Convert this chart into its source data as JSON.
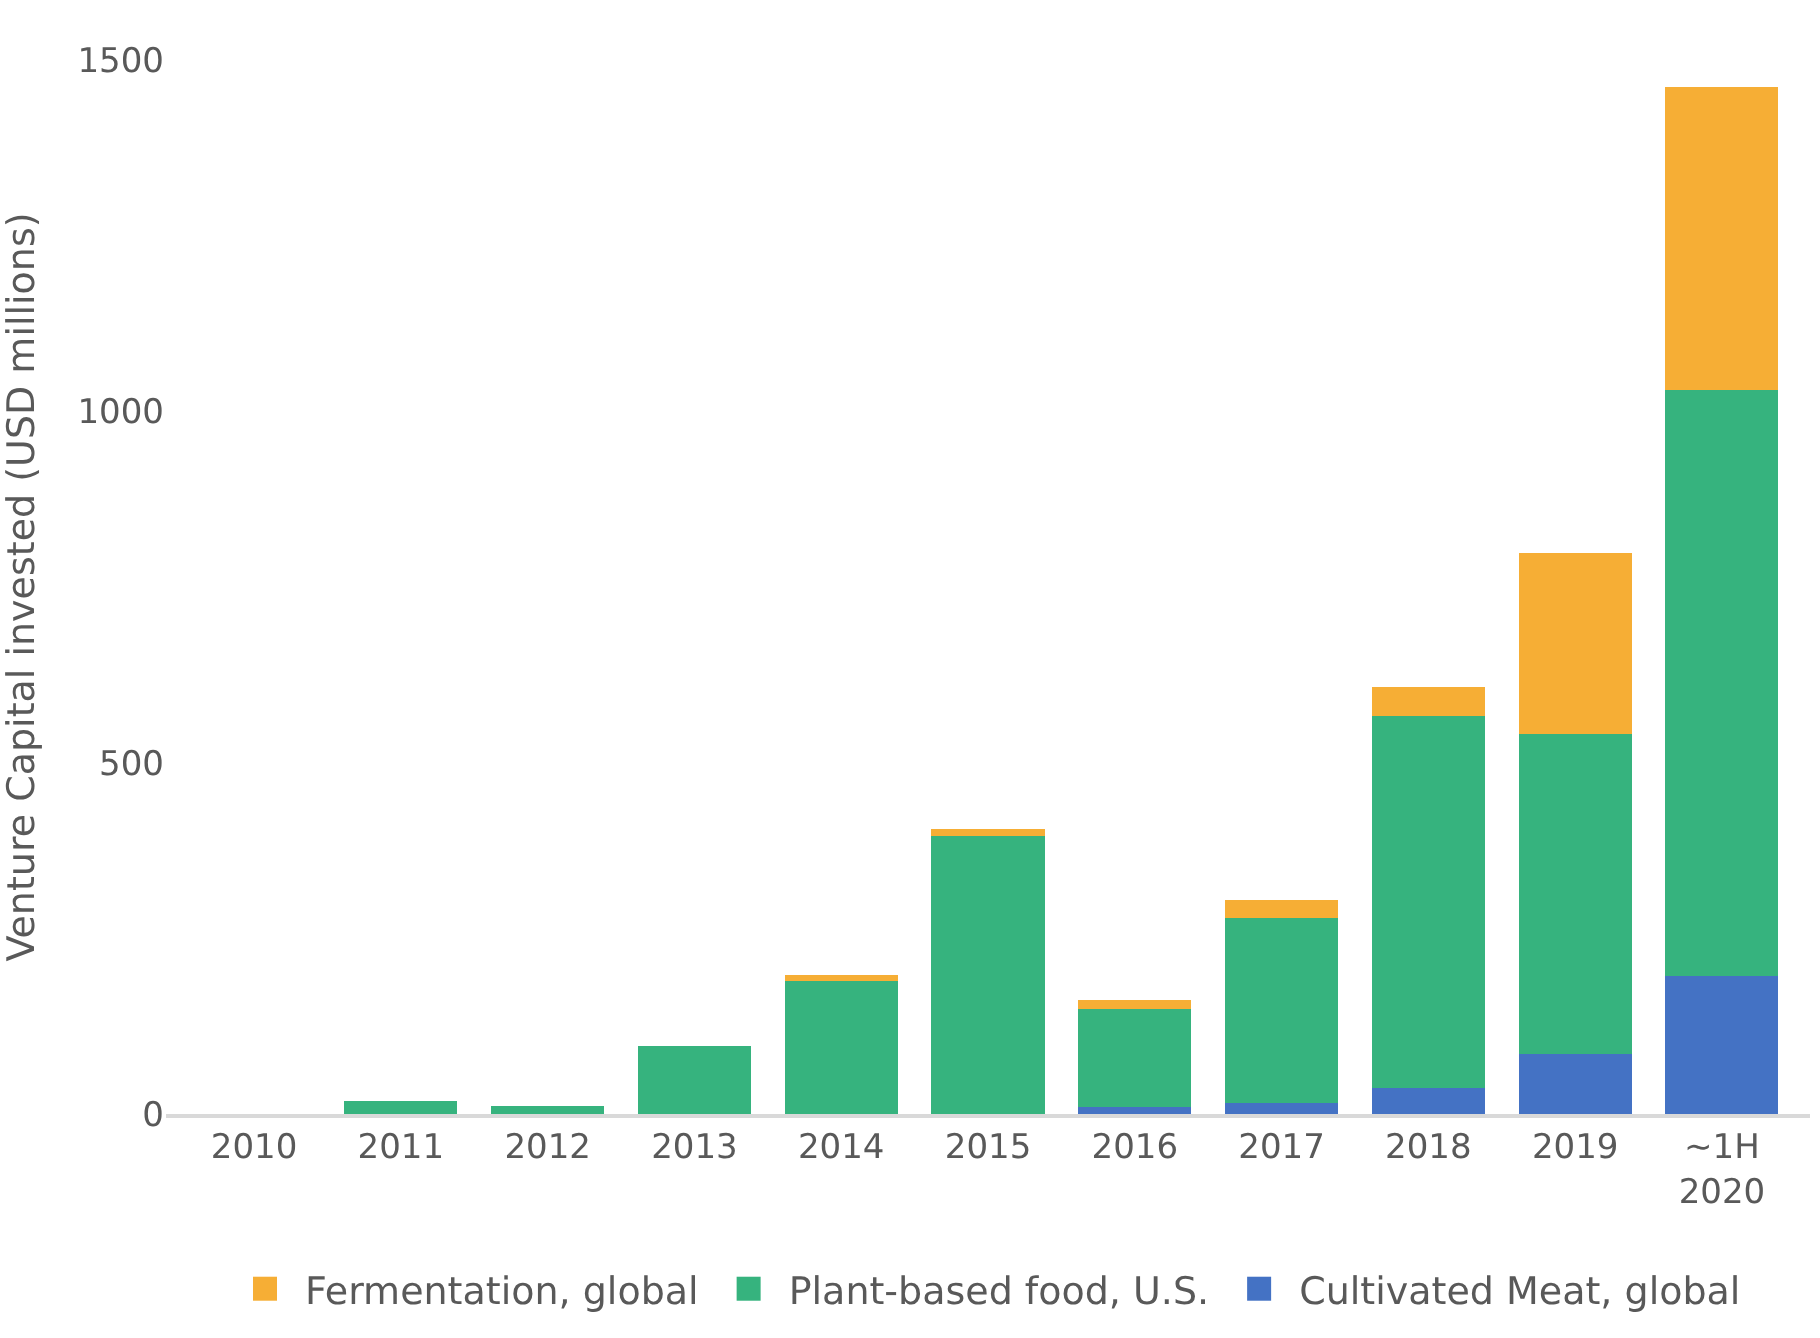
{
  "chart_data": {
    "type": "bar",
    "stacked": true,
    "ylabel": "Venture Capital invested (USD millions)",
    "categories": [
      "2010",
      "2011",
      "2012",
      "2013",
      "2014",
      "2015",
      "2016",
      "2017",
      "2018",
      "2019",
      "~1H 2020"
    ],
    "series": [
      {
        "name": "Cultivated Meat, global",
        "color": "#4472c4",
        "values": [
          0,
          0,
          0,
          0,
          0,
          0,
          10,
          16,
          37,
          86,
          197
        ]
      },
      {
        "name": "Plant-based food, U.S.",
        "color": "#36b37e",
        "values": [
          0,
          18,
          12,
          97,
          190,
          396,
          139,
          263,
          530,
          455,
          833
        ]
      },
      {
        "name": "Fermentation, global",
        "color": "#f6ae35",
        "values": [
          0,
          0,
          0,
          0,
          8,
          10,
          13,
          26,
          40,
          258,
          432
        ]
      }
    ],
    "ylim": [
      0,
      1500
    ],
    "yticks": [
      0,
      500,
      1000,
      1500
    ],
    "grid": false,
    "legend": "bottom"
  }
}
